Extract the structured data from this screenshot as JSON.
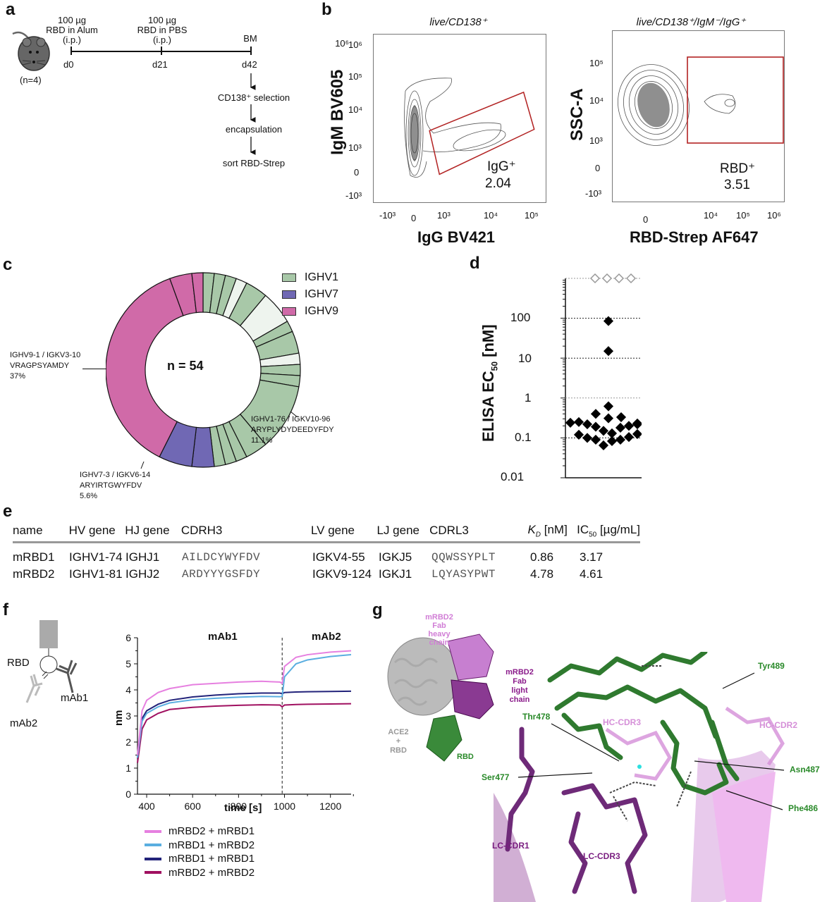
{
  "panels": {
    "a": {
      "label": "a",
      "mouse_count": "(n=4)",
      "timeline": [
        {
          "day": "d0",
          "line1": "100 µg",
          "line2": "RBD in Alum",
          "line3": "(i.p.)"
        },
        {
          "day": "d21",
          "line1": "100 µg",
          "line2": "RBD in PBS",
          "line3": "(i.p.)"
        },
        {
          "day": "d42",
          "line1": "",
          "line2": "",
          "line3": "BM"
        }
      ],
      "steps": [
        "CD138⁺ selection",
        "encapsulation",
        "sort RBD-Strep"
      ]
    },
    "b": {
      "label": "b",
      "plot1": {
        "title": "live/CD138⁺",
        "xlabel": "IgG BV421",
        "ylabel": "IgM BV605",
        "xticks": [
          "-10³",
          "0",
          "10³",
          "10⁴",
          "10⁵"
        ],
        "yticks": [
          "10⁶",
          "10⁵",
          "10⁴",
          "10³",
          "0",
          "-10³"
        ],
        "gate_name": "IgG⁺",
        "gate_value": "2.04"
      },
      "plot2": {
        "title": "live/CD138⁺/IgM⁻/IgG⁺",
        "xlabel": "RBD-Strep AF647",
        "ylabel": "SSC-A",
        "xticks": [
          "0",
          "10⁴",
          "10⁵",
          "10⁶"
        ],
        "yticks": [
          "10⁵",
          "10⁴",
          "10³",
          "0",
          "-10³"
        ],
        "gate_name": "RBD⁺",
        "gate_value": "3.51"
      }
    },
    "c": {
      "label": "c",
      "center_text": "n = 54",
      "legend": [
        {
          "name": "IGHV1",
          "color": "#a8c8a8"
        },
        {
          "name": "IGHV7",
          "color": "#7068b4"
        },
        {
          "name": "IGHV9",
          "color": "#d06aa8"
        }
      ],
      "annotations": [
        {
          "line1": "IGHV9-1 / IGKV3-10",
          "line2": "VRAGPSYAMDY",
          "line3": "37%"
        },
        {
          "line1": "IGHV1-76 / IGKV10-96",
          "line2": "ARYPLYDYDEEDYFDY",
          "line3": "11.1%"
        },
        {
          "line1": "IGHV7-3 / IGKV6-14",
          "line2": "ARYIRTGWYFDV",
          "line3": "5.6%"
        }
      ]
    },
    "d": {
      "label": "d",
      "ylabel_main": "ELISA EC",
      "ylabel_sub": "50",
      "ylabel_unit": " [nM]",
      "yticks": [
        "100",
        "10",
        "1",
        "0.1",
        "0.01"
      ]
    },
    "e": {
      "label": "e",
      "headers": [
        "name",
        "HV gene",
        "HJ gene",
        "CDRH3",
        "LV gene",
        "LJ gene",
        "CDRL3",
        "K_D [nM]",
        "IC50 [µg/mL]"
      ],
      "header_kd_main": "K",
      "header_kd_sub": "D",
      "header_kd_unit": " [nM]",
      "header_ic_main": "IC",
      "header_ic_sub": "50",
      "header_ic_unit": " [µg/mL]",
      "rows": [
        [
          "mRBD1",
          "IGHV1-74",
          "IGHJ1",
          "AILDCYWYFDV",
          "IGKV4-55",
          "IGKJ5",
          "QQWSSYPLT",
          "0.86",
          "3.17"
        ],
        [
          "mRBD2",
          "IGHV1-81",
          "IGHJ2",
          "ARDYYYGSFDY",
          "IGKV9-124",
          "IGKJ1",
          "LQYASYPWT",
          "4.78",
          "4.61"
        ]
      ]
    },
    "f": {
      "label": "f",
      "schematic": {
        "rbd": "RBD",
        "mab1": "mAb1",
        "mab2": "mAb2"
      },
      "phase1": "mAb1",
      "phase2": "mAb2",
      "xlabel": "time [s]",
      "ylabel": "nm",
      "xticks": [
        "400",
        "600",
        "800",
        "1000",
        "1200"
      ],
      "yticks": [
        "0",
        "1",
        "2",
        "3",
        "4",
        "5",
        "6"
      ],
      "legend": [
        {
          "name": "mRBD2 + mRBD1",
          "color": "#e680e0"
        },
        {
          "name": "mRBD1 + mRBD2",
          "color": "#5aaee0"
        },
        {
          "name": "mRBD1 + mRBD1",
          "color": "#22237a"
        },
        {
          "name": "mRBD2 + mRBD2",
          "color": "#a01060"
        }
      ]
    },
    "g": {
      "label": "g",
      "overview_labels": {
        "heavy": [
          "mRBD2",
          "Fab",
          "heavy",
          "chain"
        ],
        "light": [
          "mRBD2",
          "Fab",
          "light",
          "chain"
        ],
        "ace2": [
          "ACE2",
          "+",
          "RBD"
        ],
        "rbd": "RBD"
      },
      "residues": [
        "Tyr489",
        "Thr478",
        "Ser477",
        "Asn487",
        "Phe486"
      ],
      "regions": [
        "HC-CDR2",
        "HC-CDR3",
        "LC-CDR1",
        "LC-CDR3"
      ]
    }
  },
  "chart_data": [
    {
      "type": "pie",
      "title": "Panel c: IGHV usage (donut)",
      "total": 54,
      "groups": {
        "IGHV1": 26,
        "IGHV7": 5,
        "IGHV9": 23
      },
      "segments_clockwise_from_top": [
        {
          "group": "IGHV1",
          "count": 1
        },
        {
          "group": "IGHV1",
          "count": 1
        },
        {
          "group": "IGHV1",
          "count": 1
        },
        {
          "group": "IGHV1",
          "count": 1,
          "shade": "light"
        },
        {
          "group": "IGHV1",
          "count": 2
        },
        {
          "group": "IGHV1",
          "count": 3,
          "shade": "light"
        },
        {
          "group": "IGHV1",
          "count": 1
        },
        {
          "group": "IGHV1",
          "count": 2
        },
        {
          "group": "IGHV1",
          "count": 1,
          "shade": "light"
        },
        {
          "group": "IGHV1",
          "count": 1
        },
        {
          "group": "IGHV1",
          "count": 1
        },
        {
          "group": "IGHV1",
          "count": 6,
          "label": "IGHV1-76 / IGKV10-96 11.1%"
        },
        {
          "group": "IGHV1",
          "count": 2
        },
        {
          "group": "IGHV1",
          "count": 1
        },
        {
          "group": "IGHV1",
          "count": 1
        },
        {
          "group": "IGHV1",
          "count": 1
        },
        {
          "group": "IGHV7",
          "count": 2
        },
        {
          "group": "IGHV7",
          "count": 3,
          "label": "IGHV7-3 / IGKV6-14 5.6%"
        },
        {
          "group": "IGHV9",
          "count": 20,
          "label": "IGHV9-1 / IGKV3-10 37%"
        },
        {
          "group": "IGHV9",
          "count": 2
        },
        {
          "group": "IGHV9",
          "count": 1
        }
      ]
    },
    {
      "type": "scatter",
      "title": "Panel d: ELISA EC50",
      "ylabel": "ELISA EC50 [nM]",
      "yscale": "log",
      "ylim": [
        0.01,
        1000
      ],
      "filled_values": [
        0.62,
        0.4,
        0.31,
        0.33,
        0.25,
        0.22,
        0.19,
        0.15,
        0.13,
        0.18,
        0.2,
        0.23,
        0.12,
        0.1,
        0.09,
        0.065,
        0.083,
        0.09,
        0.105,
        0.125,
        0.24,
        0.22,
        85,
        15
      ],
      "open_values_not_binding": [
        1000,
        1000,
        1000,
        1000
      ],
      "gridlines": [
        1000,
        100,
        10,
        1,
        0.1
      ]
    },
    {
      "type": "line",
      "title": "Panel f: BLI epitope binning",
      "xlabel": "time [s]",
      "ylabel": "nm",
      "xlim": [
        360,
        1290
      ],
      "ylim": [
        0,
        6
      ],
      "x": [
        360,
        380,
        400,
        450,
        500,
        600,
        700,
        800,
        900,
        980,
        990,
        1000,
        1050,
        1100,
        1200,
        1290
      ],
      "series": [
        {
          "name": "mRBD2 + mRBD1",
          "values": [
            1.5,
            3.2,
            3.6,
            3.9,
            4.05,
            4.2,
            4.25,
            4.3,
            4.33,
            4.3,
            4.25,
            4.9,
            5.25,
            5.35,
            5.45,
            5.5
          ]
        },
        {
          "name": "mRBD1 + mRBD2",
          "values": [
            1.4,
            2.8,
            3.1,
            3.35,
            3.5,
            3.62,
            3.68,
            3.72,
            3.75,
            3.74,
            3.75,
            4.5,
            5.0,
            5.15,
            5.28,
            5.35
          ]
        },
        {
          "name": "mRBD1 + mRBD1",
          "values": [
            1.4,
            2.9,
            3.2,
            3.45,
            3.6,
            3.73,
            3.8,
            3.85,
            3.88,
            3.88,
            3.85,
            3.9,
            3.92,
            3.93,
            3.94,
            3.95
          ]
        },
        {
          "name": "mRBD2 + mRBD2",
          "values": [
            1.2,
            2.5,
            2.85,
            3.1,
            3.25,
            3.33,
            3.38,
            3.41,
            3.43,
            3.42,
            3.35,
            3.42,
            3.44,
            3.45,
            3.46,
            3.47
          ]
        }
      ],
      "annotations": [
        "mAb1 phase (to ~990 s)",
        "mAb2 phase (after ~990 s, dashed line)"
      ]
    }
  ]
}
